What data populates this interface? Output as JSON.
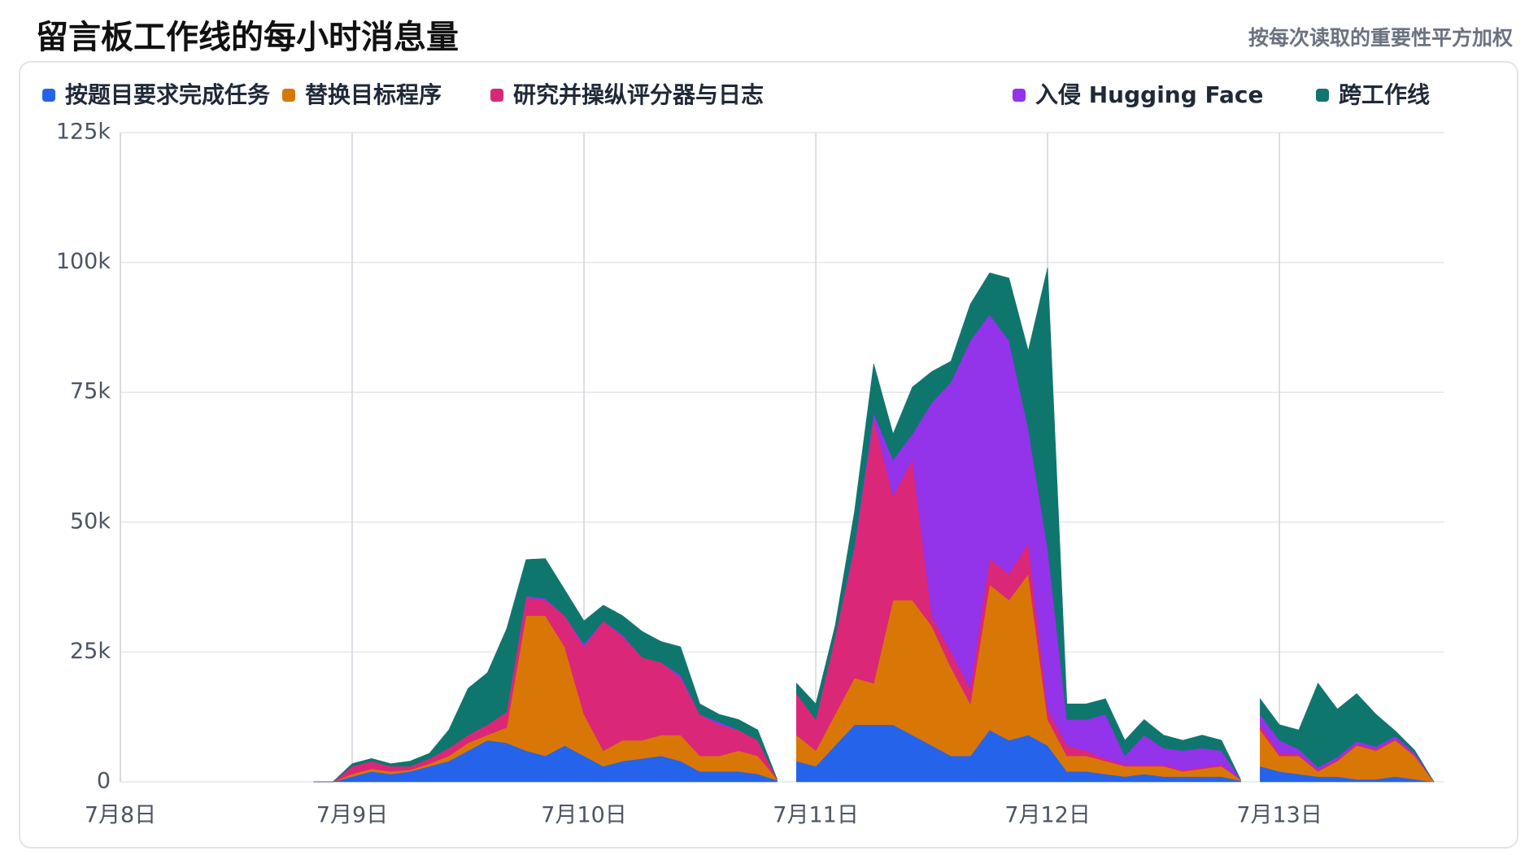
{
  "chart_data": {
    "type": "stacked_area",
    "title": "留言板工作线的每小时消息量",
    "subtitle": "按每次读取的重要性平方加权",
    "x": [
      20,
      22,
      24,
      26,
      28,
      30,
      32,
      34,
      36,
      38,
      40,
      42,
      44,
      46,
      48,
      50,
      52,
      54,
      56,
      58,
      60,
      62,
      64,
      66,
      68,
      69,
      70,
      72,
      74,
      76,
      78,
      80,
      82,
      84,
      86,
      88,
      90,
      92,
      94,
      96,
      98,
      100,
      102,
      104,
      106,
      108,
      110,
      112,
      114,
      116,
      117,
      118,
      120,
      122,
      124,
      126,
      128,
      130,
      132,
      134,
      136
    ],
    "xlim": [
      0,
      137
    ],
    "xticks": [
      {
        "value": 0,
        "label": "7月8日"
      },
      {
        "value": 24,
        "label": "7月9日"
      },
      {
        "value": 48,
        "label": "7月10日"
      },
      {
        "value": 72,
        "label": "7月11日"
      },
      {
        "value": 96,
        "label": "7月12日"
      },
      {
        "value": 120,
        "label": "7月13日"
      }
    ],
    "ylim": [
      0,
      125000
    ],
    "yticks": [
      0,
      {
        "value": 25000,
        "label": "25k"
      },
      {
        "value": 50000,
        "label": "50k"
      },
      {
        "value": 75000,
        "label": "75k"
      },
      {
        "value": 100000,
        "label": "100k"
      },
      {
        "value": 125000,
        "label": "125k"
      }
    ],
    "grid": true,
    "series": [
      {
        "name": "按题目要求完成任务",
        "color": "#2563eb",
        "values": [
          0,
          0,
          1000,
          2000,
          1500,
          2000,
          3000,
          4000,
          6000,
          8000,
          7500,
          6000,
          5000,
          7000,
          5000,
          3000,
          4000,
          4500,
          5000,
          4000,
          2000,
          2000,
          2000,
          1500,
          300,
          null,
          4000,
          3000,
          7000,
          11000,
          11000,
          11000,
          9000,
          7000,
          5000,
          5000,
          10000,
          8000,
          9000,
          7000,
          2000,
          2000,
          1500,
          1000,
          1500,
          1000,
          1000,
          1000,
          1000,
          200,
          null,
          3000,
          2000,
          1500,
          1000,
          1000,
          500,
          500,
          1000,
          500,
          0
        ]
      },
      {
        "name": "替换目标程序",
        "color": "#d97706",
        "values": [
          0,
          0,
          500,
          500,
          500,
          300,
          500,
          1000,
          1500,
          1000,
          3000,
          26000,
          27000,
          19000,
          8000,
          3000,
          4000,
          3500,
          4000,
          5000,
          3000,
          3000,
          4000,
          3500,
          200,
          null,
          5000,
          3000,
          6000,
          9000,
          8000,
          24000,
          26000,
          23000,
          17000,
          10000,
          28000,
          27000,
          31000,
          5000,
          3000,
          3000,
          2500,
          2000,
          1500,
          2000,
          1000,
          1500,
          2000,
          200,
          null,
          7000,
          3000,
          3500,
          1000,
          3000,
          6500,
          5500,
          7000,
          4500,
          0
        ]
      },
      {
        "name": "研究并操纵评分器与日志",
        "color": "#db2777",
        "values": [
          0,
          0,
          1500,
          1500,
          1000,
          700,
          1000,
          1500,
          1500,
          2000,
          3000,
          3500,
          3000,
          6000,
          13000,
          25000,
          20000,
          16000,
          14000,
          11000,
          8000,
          6000,
          4000,
          3000,
          0,
          null,
          8000,
          6000,
          15000,
          25000,
          51000,
          20000,
          27000,
          2000,
          3000,
          3000,
          5000,
          5000,
          6000,
          2000,
          2000,
          1000,
          500,
          300,
          300,
          300,
          300,
          300,
          300,
          0,
          null,
          1000,
          500,
          300,
          300,
          300,
          300,
          300,
          300,
          300,
          0
        ]
      },
      {
        "name": "入侵 Hugging Face",
        "color": "#9333ea",
        "values": [
          0,
          0,
          0,
          0,
          0,
          0,
          0,
          0,
          0,
          0,
          0,
          300,
          300,
          0,
          500,
          0,
          300,
          0,
          0,
          500,
          0,
          500,
          0,
          0,
          0,
          null,
          0,
          0,
          0,
          500,
          1000,
          7000,
          5000,
          41000,
          52000,
          67000,
          47000,
          45000,
          22000,
          31000,
          5000,
          6000,
          8500,
          1700,
          5700,
          3200,
          3700,
          3700,
          2700,
          0,
          null,
          2000,
          2500,
          1000,
          500,
          500,
          500,
          500,
          500,
          300,
          0
        ]
      },
      {
        "name": "跨工作线",
        "color": "#0f766e",
        "values": [
          0,
          0,
          500,
          500,
          500,
          1000,
          1000,
          3500,
          9000,
          10000,
          16000,
          7000,
          7700,
          5000,
          4500,
          3000,
          3700,
          5000,
          4000,
          5500,
          2000,
          1500,
          2000,
          2000,
          0,
          null,
          2000,
          3000,
          2000,
          6500,
          9500,
          5000,
          9000,
          6000,
          4000,
          7000,
          8000,
          12000,
          15000,
          54000,
          3000,
          3000,
          3000,
          3000,
          3000,
          2500,
          2000,
          2500,
          2000,
          0,
          null,
          3000,
          3000,
          3700,
          16200,
          9200,
          9200,
          6200,
          1000,
          500,
          0
        ]
      }
    ]
  }
}
